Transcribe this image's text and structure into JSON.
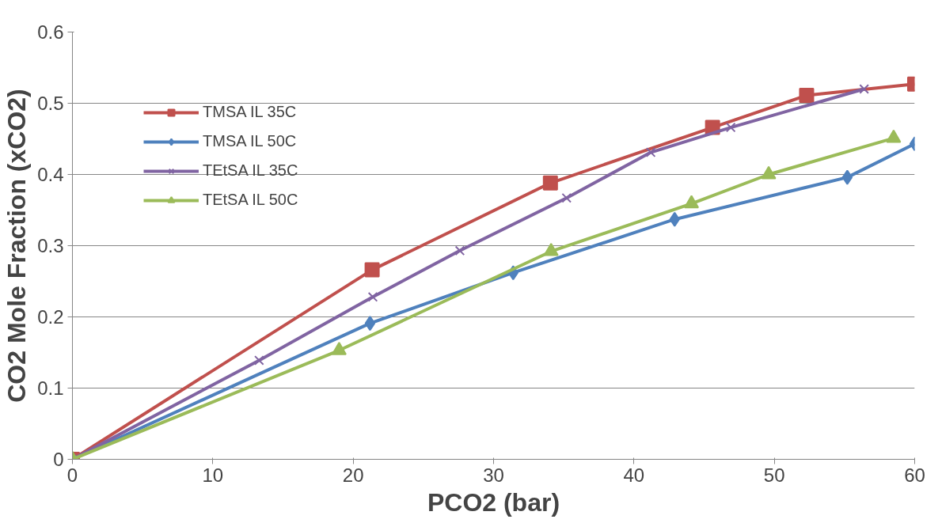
{
  "chart_data": {
    "type": "line",
    "xlabel": "PCO2 (bar)",
    "ylabel": "CO2 Mole Fraction (xCO2)",
    "xlim": [
      0,
      60
    ],
    "ylim": [
      0,
      0.6
    ],
    "xticks": [
      0,
      10,
      20,
      30,
      40,
      50,
      60
    ],
    "yticks": [
      0,
      0.1,
      0.2,
      0.3,
      0.4,
      0.5,
      0.6
    ],
    "grid": "y",
    "legend": "top left",
    "line_style": "solid",
    "series": [
      {
        "name": "TMSA IL 35C",
        "color": "#c0504d",
        "marker": "square",
        "x": [
          0,
          21.35,
          34.05,
          45.6,
          52.3,
          60
        ],
        "values": [
          0,
          0.266,
          0.388,
          0.466,
          0.511,
          0.527
        ]
      },
      {
        "name": "TMSA IL 50C",
        "color": "#4f81bd",
        "marker": "diamond",
        "x": [
          0,
          21.2,
          31.4,
          42.9,
          55.2,
          60
        ],
        "values": [
          0,
          0.191,
          0.262,
          0.337,
          0.396,
          0.443
        ]
      },
      {
        "name": "TEtSA IL 35C",
        "color": "#8064a2",
        "marker": "cross",
        "x": [
          0,
          13.3,
          21.4,
          27.6,
          35.2,
          41.2,
          46.9,
          56.4
        ],
        "values": [
          0,
          0.139,
          0.228,
          0.293,
          0.367,
          0.431,
          0.466,
          0.52
        ]
      },
      {
        "name": "TEtSA IL 50C",
        "color": "#9bbb59",
        "marker": "triangle",
        "x": [
          0,
          19.0,
          34.1,
          44.1,
          49.6,
          58.5
        ],
        "values": [
          0,
          0.153,
          0.292,
          0.359,
          0.4,
          0.451
        ]
      }
    ]
  }
}
